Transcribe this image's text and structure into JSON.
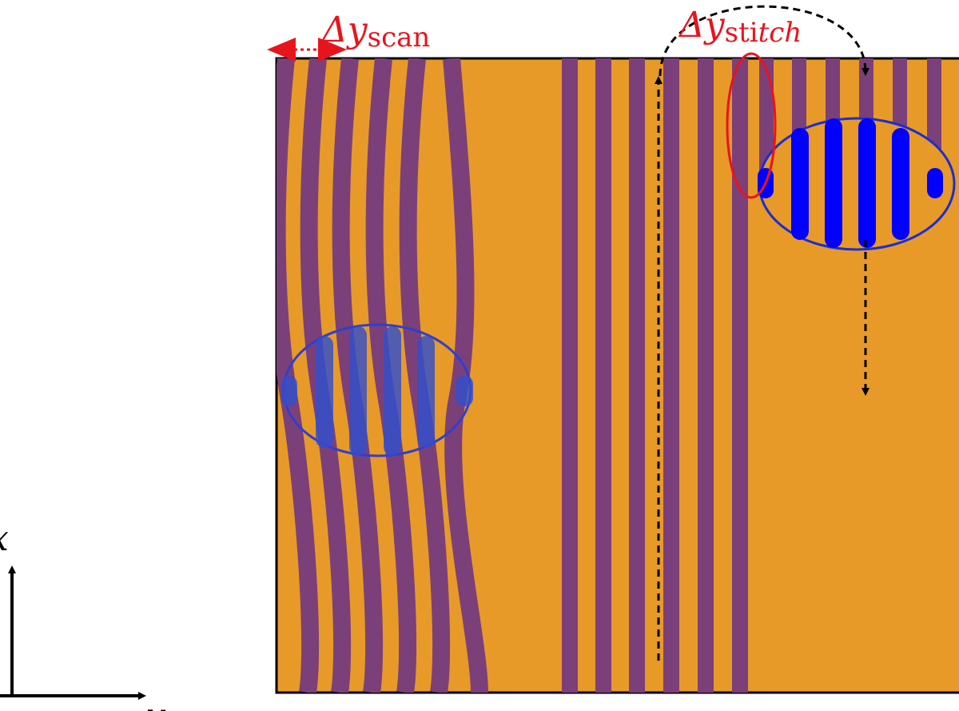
{
  "labels": {
    "scan": {
      "delta": "Δy",
      "subscript": "scan"
    },
    "stitch": {
      "delta": "Δy",
      "subscript_upright": "sti",
      "subscript_italic": "tch"
    }
  },
  "axes": {
    "vertical": "x",
    "horizontal": "y"
  }
}
